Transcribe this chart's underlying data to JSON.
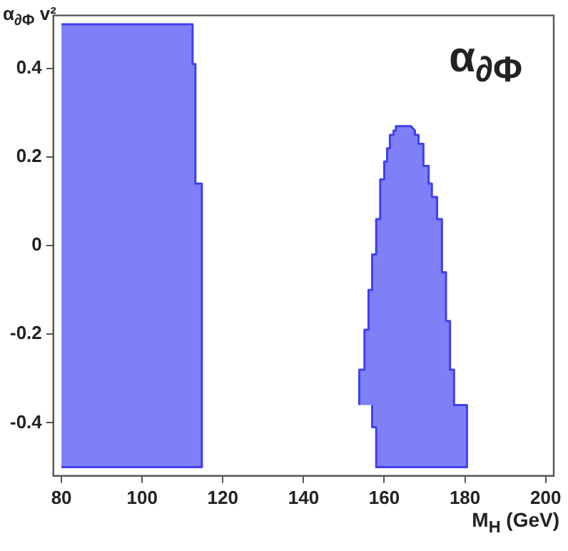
{
  "chart_data": {
    "type": "area",
    "ylabel": "α$_{∂Φ}$ v²",
    "xlabel": "M$_{H}$ (GeV)",
    "annotations": [
      "α$_{∂Φ}$"
    ],
    "xlim": [
      78,
      202
    ],
    "xticks": [
      80,
      100,
      120,
      140,
      160,
      180,
      200
    ],
    "ylim": [
      -0.52,
      0.52
    ],
    "yticks": [
      -0.4,
      -0.2,
      0,
      0.2,
      0.4
    ],
    "series": [
      {
        "color": "#7f7ff8",
        "x": [
          80,
          112.5,
          112.5,
          113.2,
          113.2,
          114.8,
          114.8,
          80
        ],
        "values": [
          0.5,
          0.5,
          0.41,
          0.41,
          0.14,
          0.14,
          -0.5,
          -0.5
        ]
      },
      {
        "color": "#7f7ff8",
        "x": [
          153.8,
          153.8,
          155.1,
          155.1,
          156.1,
          156.1,
          157.0,
          157.0,
          158.0,
          158.0,
          159.0,
          159.0,
          160.0,
          160.0,
          160.7,
          160.7,
          161.4,
          161.4,
          162.3,
          162.3,
          162.9,
          162.9,
          166.6,
          167.6,
          167.6,
          168.5,
          168.5,
          169.7,
          169.7,
          171.0,
          171.0,
          171.8,
          171.8,
          173.1,
          173.1,
          174.3,
          174.3,
          175.3,
          175.3,
          176.3,
          176.3,
          177.3,
          177.3,
          180.5,
          180.5,
          158.0,
          158.0,
          157.0,
          157.0
        ],
        "values": [
          -0.36,
          -0.28,
          -0.28,
          -0.19,
          -0.19,
          -0.1,
          -0.1,
          -0.02,
          -0.02,
          0.06,
          0.06,
          0.15,
          0.15,
          0.19,
          0.19,
          0.22,
          0.22,
          0.25,
          0.25,
          0.26,
          0.26,
          0.27,
          0.27,
          0.26,
          0.25,
          0.25,
          0.23,
          0.23,
          0.18,
          0.18,
          0.14,
          0.14,
          0.11,
          0.11,
          0.06,
          0.06,
          -0.06,
          -0.06,
          -0.17,
          -0.17,
          -0.28,
          -0.28,
          -0.36,
          -0.36,
          -0.5,
          -0.5,
          -0.41,
          -0.41,
          -0.36
        ]
      }
    ]
  }
}
